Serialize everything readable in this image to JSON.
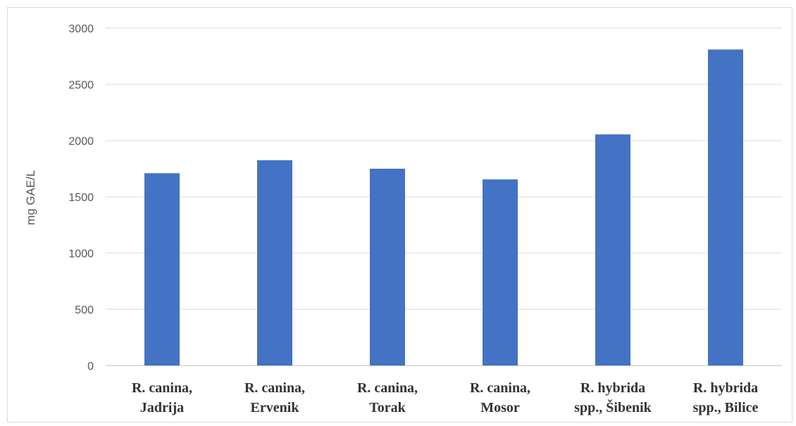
{
  "chart_data": {
    "type": "bar",
    "title": "",
    "xlabel": "",
    "ylabel": "mg GAE/L",
    "ylim": [
      0,
      3000
    ],
    "yticks": [
      0,
      500,
      1000,
      1500,
      2000,
      2500,
      3000
    ],
    "grid": true,
    "legend": "none",
    "categories": [
      [
        "R. canina,",
        "Jadrija"
      ],
      [
        "R. canina,",
        "Ervenik"
      ],
      [
        "R. canina,",
        "Torak"
      ],
      [
        "R. canina,",
        "Mosor"
      ],
      [
        "R. hybrida",
        "spp., Šibenik"
      ],
      [
        "R. hybrida",
        "spp., Bilice"
      ]
    ],
    "values": [
      1710,
      1825,
      1750,
      1655,
      2055,
      2810
    ],
    "colors": {
      "bar": "#4472c4",
      "grid": "#d9d9d9",
      "text": "#595959"
    }
  }
}
